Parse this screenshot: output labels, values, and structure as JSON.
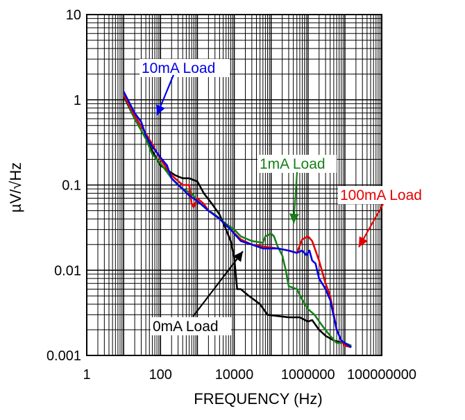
{
  "chart_data": {
    "type": "line",
    "title": "",
    "xlabel": "FREQUENCY (Hz)",
    "ylabel": "µV/√Hz",
    "xscale": "log",
    "yscale": "log",
    "xlim": [
      1,
      100000000
    ],
    "ylim": [
      0.001,
      10
    ],
    "grid": true,
    "x_tick_labels": [
      "1",
      "100",
      "10000",
      "1000000",
      "100000000"
    ],
    "y_tick_labels": [
      "10",
      "1",
      "0.1",
      "0.01",
      "0.001"
    ],
    "x_ticks": [
      1,
      100,
      10000,
      1000000,
      100000000
    ],
    "y_ticks": [
      10,
      1,
      0.1,
      0.01,
      0.001
    ],
    "series": [
      {
        "name": "0mA Load",
        "color": "#000000",
        "points": [
          [
            10,
            1.1
          ],
          [
            20,
            0.6
          ],
          [
            40,
            0.35
          ],
          [
            60,
            0.25
          ],
          [
            100,
            0.17
          ],
          [
            150,
            0.15
          ],
          [
            250,
            0.13
          ],
          [
            400,
            0.12
          ],
          [
            600,
            0.12
          ],
          [
            1000,
            0.11
          ],
          [
            1500,
            0.08
          ],
          [
            2500,
            0.06
          ],
          [
            4000,
            0.045
          ],
          [
            6000,
            0.03
          ],
          [
            8000,
            0.022
          ],
          [
            10000,
            0.014
          ],
          [
            12000,
            0.006
          ],
          [
            15000,
            0.006
          ],
          [
            25000,
            0.005
          ],
          [
            50000,
            0.004
          ],
          [
            80000,
            0.003
          ],
          [
            150000,
            0.0029
          ],
          [
            300000,
            0.0028
          ],
          [
            600000,
            0.0028
          ],
          [
            1000000,
            0.0025
          ],
          [
            1300000,
            0.0026
          ],
          [
            2000000,
            0.002
          ],
          [
            3000000,
            0.0017
          ],
          [
            5000000,
            0.0015
          ],
          [
            9000000,
            0.0014
          ],
          [
            12000000,
            0.0013
          ],
          [
            15000000,
            0.00125
          ]
        ]
      },
      {
        "name": "1mA Load",
        "color": "#168016",
        "points": [
          [
            10,
            1.15
          ],
          [
            20,
            0.6
          ],
          [
            40,
            0.35
          ],
          [
            60,
            0.23
          ],
          [
            100,
            0.18
          ],
          [
            200,
            0.12
          ],
          [
            400,
            0.09
          ],
          [
            700,
            0.08
          ],
          [
            1000,
            0.065
          ],
          [
            2000,
            0.05
          ],
          [
            3000,
            0.045
          ],
          [
            6000,
            0.035
          ],
          [
            10000,
            0.03
          ],
          [
            15000,
            0.025
          ],
          [
            30000,
            0.022
          ],
          [
            60000,
            0.021
          ],
          [
            70000,
            0.025
          ],
          [
            100000,
            0.027
          ],
          [
            120000,
            0.025
          ],
          [
            150000,
            0.019
          ],
          [
            200000,
            0.015
          ],
          [
            250000,
            0.01
          ],
          [
            300000,
            0.0065
          ],
          [
            400000,
            0.0062
          ],
          [
            500000,
            0.006
          ],
          [
            700000,
            0.0045
          ],
          [
            1000000,
            0.0035
          ],
          [
            1500000,
            0.003
          ],
          [
            2500000,
            0.0022
          ],
          [
            4000000,
            0.0017
          ],
          [
            6000000,
            0.0014
          ],
          [
            10000000,
            0.0014
          ],
          [
            15000000,
            0.0013
          ]
        ]
      },
      {
        "name": "10mA Load",
        "color": "#0000e6",
        "points": [
          [
            10,
            1.25
          ],
          [
            20,
            0.7
          ],
          [
            30,
            0.55
          ],
          [
            40,
            0.38
          ],
          [
            60,
            0.28
          ],
          [
            80,
            0.24
          ],
          [
            100,
            0.21
          ],
          [
            150,
            0.17
          ],
          [
            200,
            0.12
          ],
          [
            300,
            0.1
          ],
          [
            400,
            0.09
          ],
          [
            600,
            0.075
          ],
          [
            1000,
            0.065
          ],
          [
            2000,
            0.05
          ],
          [
            4000,
            0.04
          ],
          [
            8000,
            0.03
          ],
          [
            15000,
            0.022
          ],
          [
            30000,
            0.02
          ],
          [
            60000,
            0.018
          ],
          [
            150000,
            0.018
          ],
          [
            300000,
            0.017
          ],
          [
            500000,
            0.016
          ],
          [
            700000,
            0.017
          ],
          [
            900000,
            0.015
          ],
          [
            1100000,
            0.017
          ],
          [
            1300000,
            0.013
          ],
          [
            1600000,
            0.012
          ],
          [
            2000000,
            0.008
          ],
          [
            3000000,
            0.006
          ],
          [
            4000000,
            0.0045
          ],
          [
            6000000,
            0.002
          ],
          [
            8000000,
            0.0015
          ],
          [
            10000000,
            0.0014
          ],
          [
            15000000,
            0.00125
          ]
        ]
      },
      {
        "name": "100mA Load",
        "color": "#e60000",
        "points": [
          [
            10,
            1.15
          ],
          [
            20,
            0.65
          ],
          [
            40,
            0.4
          ],
          [
            60,
            0.3
          ],
          [
            100,
            0.2
          ],
          [
            200,
            0.13
          ],
          [
            400,
            0.1
          ],
          [
            600,
            0.1
          ],
          [
            700,
            0.06
          ],
          [
            800,
            0.055
          ],
          [
            1000,
            0.07
          ],
          [
            1500,
            0.06
          ],
          [
            2000,
            0.05
          ],
          [
            4000,
            0.04
          ],
          [
            8000,
            0.03
          ],
          [
            15000,
            0.023
          ],
          [
            30000,
            0.02
          ],
          [
            60000,
            0.019
          ],
          [
            150000,
            0.018
          ],
          [
            300000,
            0.017
          ],
          [
            500000,
            0.016
          ],
          [
            700000,
            0.023
          ],
          [
            1000000,
            0.025
          ],
          [
            1300000,
            0.022
          ],
          [
            2000000,
            0.013
          ],
          [
            3000000,
            0.007
          ],
          [
            4000000,
            0.005
          ],
          [
            6000000,
            0.002
          ],
          [
            8000000,
            0.0015
          ],
          [
            10000000,
            0.0013
          ],
          [
            15000000,
            0.00125
          ]
        ]
      }
    ],
    "annotations": [
      {
        "text": "10mA Load",
        "series": "10mA Load",
        "color": "#0000e6"
      },
      {
        "text": "1mA Load",
        "series": "1mA Load",
        "color": "#168016"
      },
      {
        "text": "100mA Load",
        "series": "100mA Load",
        "color": "#e60000"
      },
      {
        "text": "0mA Load",
        "series": "0mA Load",
        "color": "#000000"
      }
    ]
  }
}
